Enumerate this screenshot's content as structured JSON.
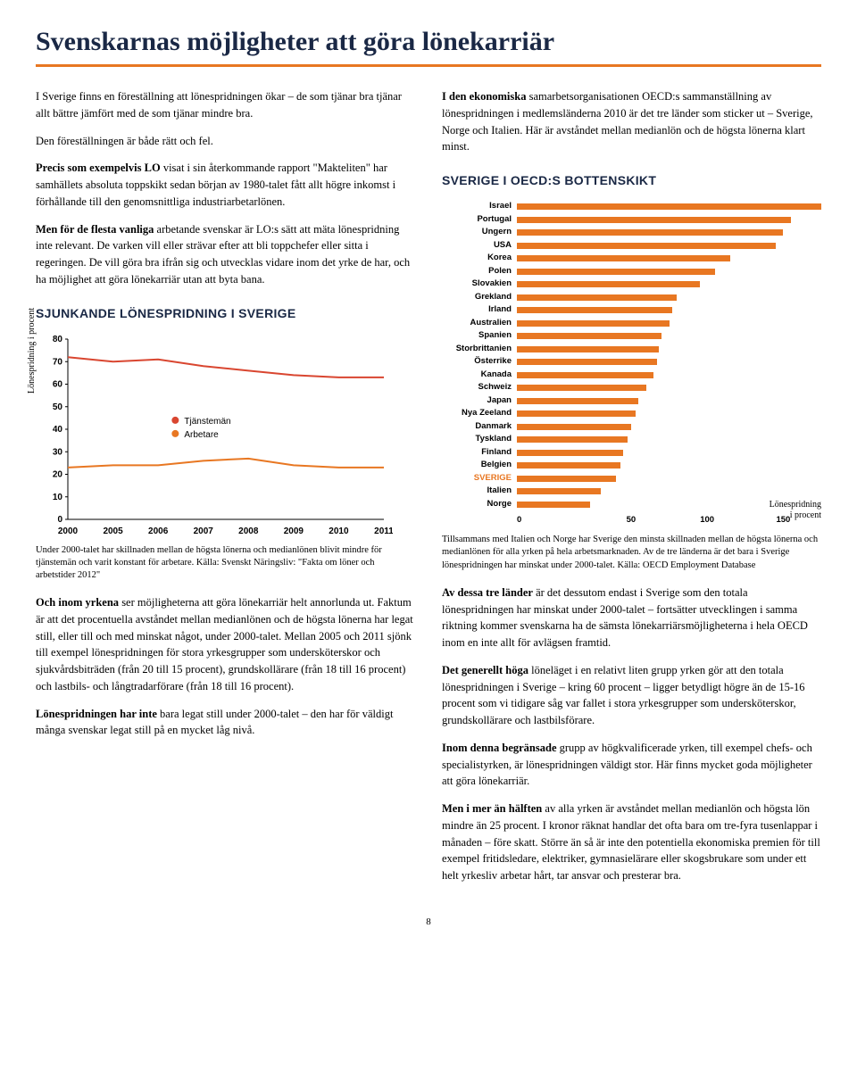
{
  "title": "Svenskarnas möjligheter att göra lönekarriär",
  "page_number": "8",
  "left": {
    "p1": "I Sverige finns en föreställning att lönespridningen ökar – de som tjänar bra tjänar allt bättre jämfört med de som tjänar mindre bra.",
    "p2": "Den föreställningen är både rätt och fel.",
    "p3_bold": "Precis som exempelvis LO",
    "p3_rest": " visat i sin återkommande rapport \"Makteliten\" har samhällets absoluta toppskikt sedan början av 1980-talet fått allt högre inkomst i förhållande till den genomsnittliga industriarbetarlönen.",
    "p4_bold": "Men för de flesta vanliga",
    "p4_rest": " arbetande svenskar är LO:s sätt att mäta lönespridning inte relevant. De varken vill eller strävar efter att bli toppchefer eller sitta i regeringen. De vill göra bra ifrån sig och utvecklas vidare inom det yrke de har, och ha möjlighet att göra lönekarriär utan att byta bana.",
    "heading1": "SJUNKANDE LÖNESPRIDNING I SVERIGE",
    "chart_caption": "Under 2000-talet har skillnaden mellan de högsta lönerna och medianlönen blivit mindre för tjänstemän och varit konstant för arbetare. Källa: Svenskt Näringsliv: \"Fakta om löner och arbetstider 2012\"",
    "p5_bold": "Och inom yrkena",
    "p5_rest": " ser möjligheterna att göra lönekarriär helt annorlunda ut. Faktum är att det procentuella avståndet mellan medianlönen och de högsta lönerna har legat still, eller till och med minskat något, under 2000-talet. Mellan 2005 och 2011 sjönk till exempel lönespridningen för stora yrkesgrupper som undersköterskor och sjukvårdsbiträden (från 20 till 15 procent), grundskollärare (från 18 till 16 procent) och lastbils- och långtradarförare (från 18 till 16 procent).",
    "p6_bold": "Lönespridningen har inte",
    "p6_rest": " bara legat still under 2000-talet – den har för väldigt många svenskar legat still på en mycket låg nivå."
  },
  "right": {
    "p1_bold": "I den ekonomiska",
    "p1_rest": " samarbetsorganisationen OECD:s sammanställning av lönespridningen i medlemsländerna 2010 är det tre länder som sticker ut – Sverige, Norge och Italien. Här är avståndet mellan medianlön och de högsta lönerna klart minst.",
    "heading1": "SVERIGE I OECD:S BOTTENSKIKT",
    "bar_caption": "Tillsammans med Italien och Norge har Sverige den minsta skillnaden mellan de högsta lönerna och medianlönen för alla yrken på hela arbetsmarknaden. Av de tre länderna är det bara i Sverige lönespridningen har minskat under 2000-talet. Källa: OECD Employment Database",
    "bar_right_label1": "Lönespridning",
    "bar_right_label2": "i procent",
    "p2_bold": "Av dessa tre länder",
    "p2_rest": " är det dessutom endast i Sverige som den totala lönespridningen har minskat under 2000-talet – fortsätter utvecklingen i samma riktning kommer svenskarna ha de sämsta lönekarriärsmöjligheterna i hela OECD inom en inte allt för avlägsen framtid.",
    "p3_bold": "Det generellt höga",
    "p3_rest": " löneläget i en relativt liten grupp yrken gör att den totala lönespridningen i Sverige – kring 60 procent – ligger betydligt högre än de 15-16 procent som vi tidigare såg var fallet i stora yrkesgrupper som undersköterskor, grundskollärare och lastbilsförare.",
    "p4_bold": "Inom denna begränsade",
    "p4_rest": " grupp av högkvalificerade yrken, till exempel chefs- och specialistyrken, är lönespridningen väldigt stor. Här finns mycket goda möjligheter att göra lönekarriär.",
    "p5_bold": "Men i mer än hälften",
    "p5_rest": " av alla yrken är avståndet mellan medianlön och högsta lön mindre än 25 procent. I kronor räknat handlar det ofta bara om tre-fyra tusenlappar i månaden – före skatt. Större än så är inte den potentiella ekonomiska premien för till exempel fritidsledare, elektriker, gymnasielärare eller skogsbrukare som under ett helt yrkesliv arbetar hårt, tar ansvar och presterar bra."
  },
  "line_chart": {
    "y_label": "Lönespridning i procent",
    "y_ticks": [
      "0",
      "10",
      "20",
      "30",
      "40",
      "50",
      "60",
      "70",
      "80"
    ],
    "x_ticks": [
      "2000",
      "2005",
      "2006",
      "2007",
      "2008",
      "2009",
      "2010",
      "2011"
    ],
    "legend": {
      "s1": "Tjänstemän",
      "s2": "Arbetare"
    },
    "colors": {
      "s1": "#d94630",
      "s2": "#e87722",
      "axis": "#000",
      "text": "#000"
    },
    "series1": [
      72,
      70,
      71,
      68,
      66,
      64,
      63,
      63
    ],
    "series2": [
      23,
      24,
      24,
      26,
      27,
      24,
      23,
      23
    ],
    "ylim": [
      0,
      80
    ],
    "font_size": 10
  },
  "bar_chart": {
    "color": "#e87722",
    "highlight_color": "#e87722",
    "xlim": [
      0,
      200
    ],
    "x_ticks": [
      "0",
      "50",
      "100",
      "150",
      "200"
    ],
    "countries": [
      {
        "label": "Israel",
        "value": 210
      },
      {
        "label": "Portugal",
        "value": 180
      },
      {
        "label": "Ungern",
        "value": 175
      },
      {
        "label": "USA",
        "value": 170
      },
      {
        "label": "Korea",
        "value": 140
      },
      {
        "label": "Polen",
        "value": 130
      },
      {
        "label": "Slovakien",
        "value": 120
      },
      {
        "label": "Grekland",
        "value": 105
      },
      {
        "label": "Irland",
        "value": 102
      },
      {
        "label": "Australien",
        "value": 100
      },
      {
        "label": "Spanien",
        "value": 95
      },
      {
        "label": "Storbrittanien",
        "value": 93
      },
      {
        "label": "Österrike",
        "value": 92
      },
      {
        "label": "Kanada",
        "value": 90
      },
      {
        "label": "Schweiz",
        "value": 85
      },
      {
        "label": "Japan",
        "value": 80
      },
      {
        "label": "Nya Zeeland",
        "value": 78
      },
      {
        "label": "Danmark",
        "value": 75
      },
      {
        "label": "Tyskland",
        "value": 73
      },
      {
        "label": "Finland",
        "value": 70
      },
      {
        "label": "Belgien",
        "value": 68
      },
      {
        "label": "SVERIGE",
        "value": 65,
        "highlight": true
      },
      {
        "label": "Italien",
        "value": 55
      },
      {
        "label": "Norge",
        "value": 48
      }
    ]
  }
}
